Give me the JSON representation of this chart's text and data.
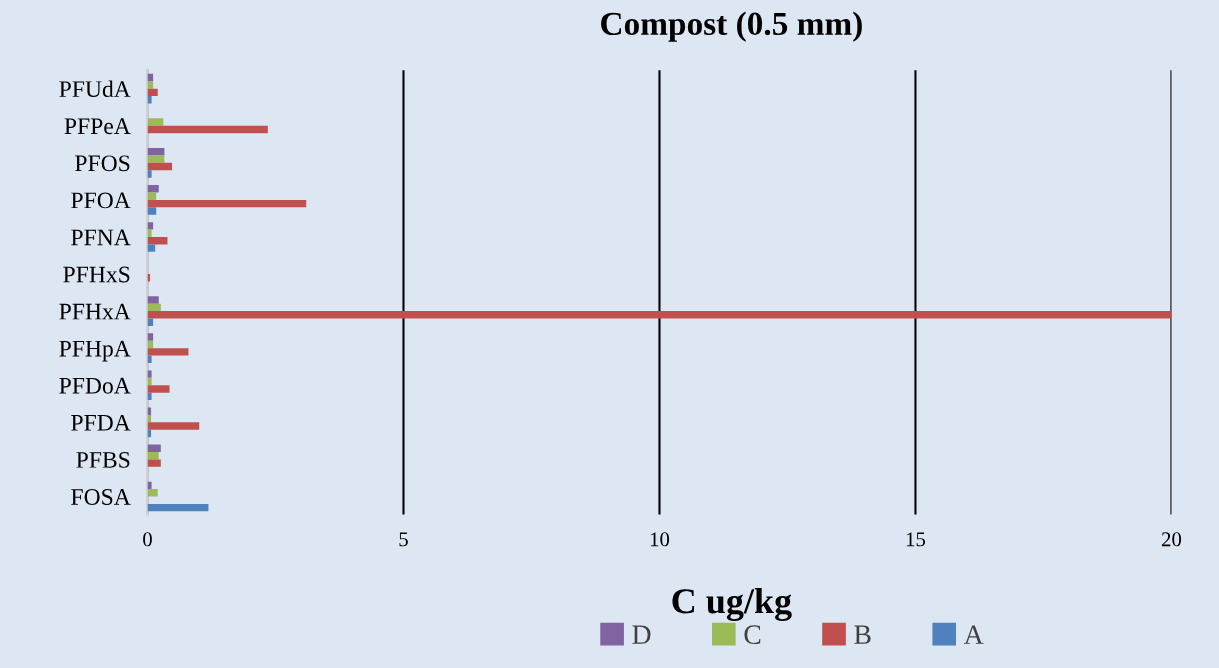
{
  "chart_data": {
    "type": "bar",
    "orientation": "horizontal",
    "title": "Compost (0.5 mm)",
    "xlabel": "C ug/kg",
    "categories": [
      "PFUdA",
      "PFPeA",
      "PFOS",
      "PFOA",
      "PFNA",
      "PFHxS",
      "PFHxA",
      "PFHpA",
      "PFDoA",
      "PFDA",
      "PFBS",
      "FOSA"
    ],
    "series": [
      {
        "name": "D",
        "color": "#8064a2",
        "values": [
          0.11,
          0,
          0.33,
          0.22,
          0.11,
          0,
          0.22,
          0.11,
          0.08,
          0.07,
          0.26,
          0.08
        ]
      },
      {
        "name": "C",
        "color": "#9bbb59",
        "values": [
          0.11,
          0.31,
          0.33,
          0.17,
          0.08,
          0,
          0.26,
          0.11,
          0.08,
          0.07,
          0.22,
          0.2
        ]
      },
      {
        "name": "B",
        "color": "#c0504d",
        "values": [
          0.2,
          2.35,
          0.48,
          3.1,
          0.39,
          0.05,
          20,
          0.8,
          0.43,
          1.01,
          0.26,
          0
        ]
      },
      {
        "name": "A",
        "color": "#4f81bd",
        "values": [
          0.08,
          0,
          0.08,
          0.17,
          0.15,
          0,
          0.11,
          0.08,
          0.08,
          0.07,
          0,
          1.19
        ]
      }
    ],
    "xlim": [
      0,
      20
    ],
    "xticks": [
      0,
      5,
      10,
      15,
      20
    ],
    "grid": "x",
    "legend": "bottom"
  }
}
